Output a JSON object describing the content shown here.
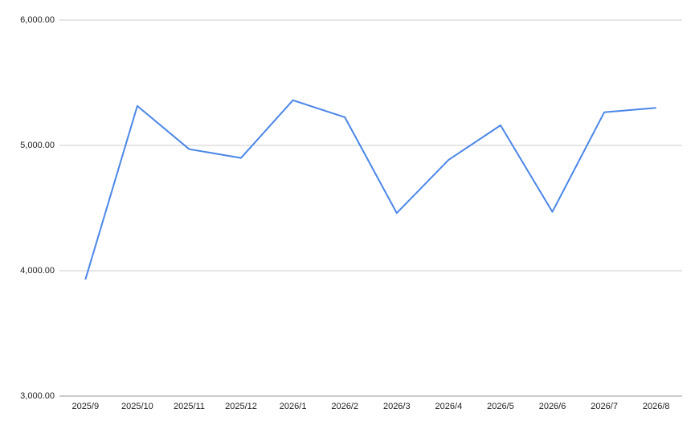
{
  "chart_data": {
    "type": "line",
    "categories": [
      "2025/9",
      "2025/10",
      "2025/11",
      "2025/12",
      "2026/1",
      "2026/2",
      "2026/3",
      "2026/4",
      "2026/5",
      "2026/6",
      "2026/7",
      "2026/8"
    ],
    "series": [
      {
        "color": "#4a86e8",
        "values": [
          3930,
          5315,
          4970,
          4900,
          5360,
          5225,
          4460,
          4885,
          5160,
          4470,
          5265,
          5300
        ]
      }
    ],
    "ylim": [
      3000,
      6000
    ],
    "yticks": [
      {
        "value": 3000,
        "label": "3,000.00"
      },
      {
        "value": 4000,
        "label": "4,000.00"
      },
      {
        "value": 5000,
        "label": "5,000.00"
      },
      {
        "value": 6000,
        "label": "6,000.00"
      }
    ],
    "grid": true
  }
}
